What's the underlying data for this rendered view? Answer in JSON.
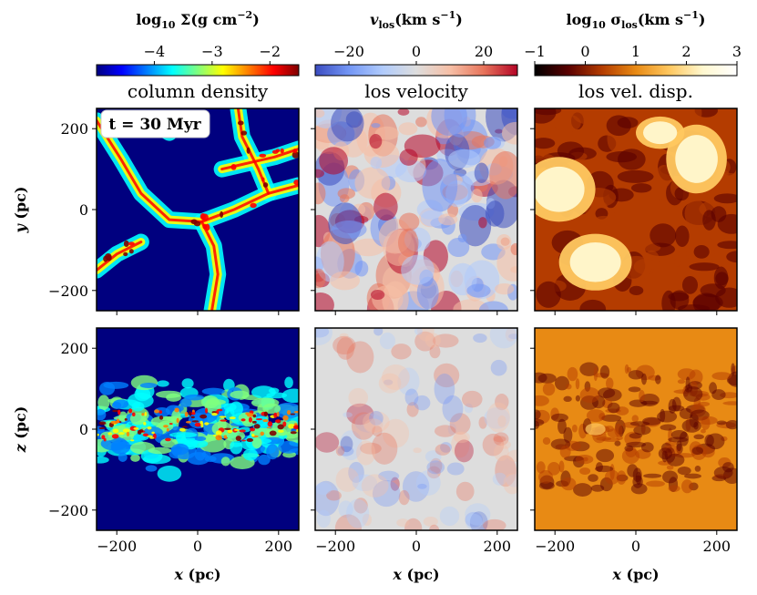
{
  "chart_data": {
    "type": "heatmap",
    "figure": "Simulation projections of a 500 pc box at one snapshot",
    "annotation": "t = 30 Myr",
    "columns": [
      {
        "title": "column density",
        "colorbar": {
          "label_prefix": "log",
          "label_sub": "10",
          "label_main": " Σ(g cm",
          "label_sup": "−2",
          "label_end": ")",
          "range": [
            -5,
            -1.5
          ],
          "ticks": [
            -4,
            -3,
            -2
          ],
          "tick_labels": [
            "−4",
            "−3",
            "−2"
          ],
          "colormap": "jet",
          "colors": [
            "#00007f",
            "#0000ff",
            "#007fff",
            "#00ffff",
            "#7fff7f",
            "#ffff00",
            "#ff7f00",
            "#ff0000",
            "#7f0000"
          ]
        }
      },
      {
        "title": "los velocity",
        "colorbar": {
          "label_prefix": "v",
          "label_sub": "los",
          "label_main": "(km s",
          "label_sup": "−1",
          "label_end": ")",
          "range": [
            -30,
            30
          ],
          "ticks": [
            -20,
            0,
            20
          ],
          "tick_labels": [
            "−20",
            "0",
            "20"
          ],
          "colormap": "coolwarm",
          "colors": [
            "#3b4cc0",
            "#7396f5",
            "#b0cbfc",
            "#dddddd",
            "#f6bfa6",
            "#e7745b",
            "#b40426"
          ]
        }
      },
      {
        "title": "los vel. disp.",
        "colorbar": {
          "label_prefix": "log",
          "label_sub": "10",
          "label_main": " σ",
          "label_sub2": "los",
          "label_main2": "(km s",
          "label_sup": "−1",
          "label_end": ")",
          "range": [
            -1,
            3
          ],
          "ticks": [
            -1,
            0,
            1,
            2,
            3
          ],
          "tick_labels": [
            "−1",
            "0",
            "1",
            "2",
            "3"
          ],
          "colormap": "afmhot",
          "colors": [
            "#000000",
            "#5a0000",
            "#b43c00",
            "#e88a14",
            "#ffc860",
            "#fff8d0",
            "#ffffff"
          ]
        }
      }
    ],
    "rows": [
      {
        "ylabel_var": "y",
        "ylabel_unit": " (pc)",
        "yticks": [
          200,
          0,
          -200
        ],
        "ytick_labels": [
          "200",
          "0",
          "−200"
        ],
        "ylim": [
          -250,
          250
        ],
        "panel_descriptions": [
          "face-on filamentary gas network with large voids",
          "line-of-sight velocity, mixed red/blue patches",
          "hot yellow bubbles inside dark dense filaments"
        ]
      },
      {
        "ylabel_var": "z",
        "ylabel_unit": " (pc)",
        "yticks": [
          200,
          0,
          -200
        ],
        "ytick_labels": [
          "200",
          "0",
          "−200"
        ],
        "ylim": [
          -250,
          250
        ],
        "panel_descriptions": [
          "edge-on thin gas disk near z = 0",
          "mostly neutral velocity with weak patches",
          "uniform orange dispersion with darker midplane"
        ]
      }
    ],
    "xaxis": {
      "var": "x",
      "unit": " (pc)",
      "ticks": [
        -200,
        0,
        200
      ],
      "tick_labels": [
        "−200",
        "0",
        "200"
      ],
      "xlim": [
        -250,
        250
      ]
    }
  }
}
